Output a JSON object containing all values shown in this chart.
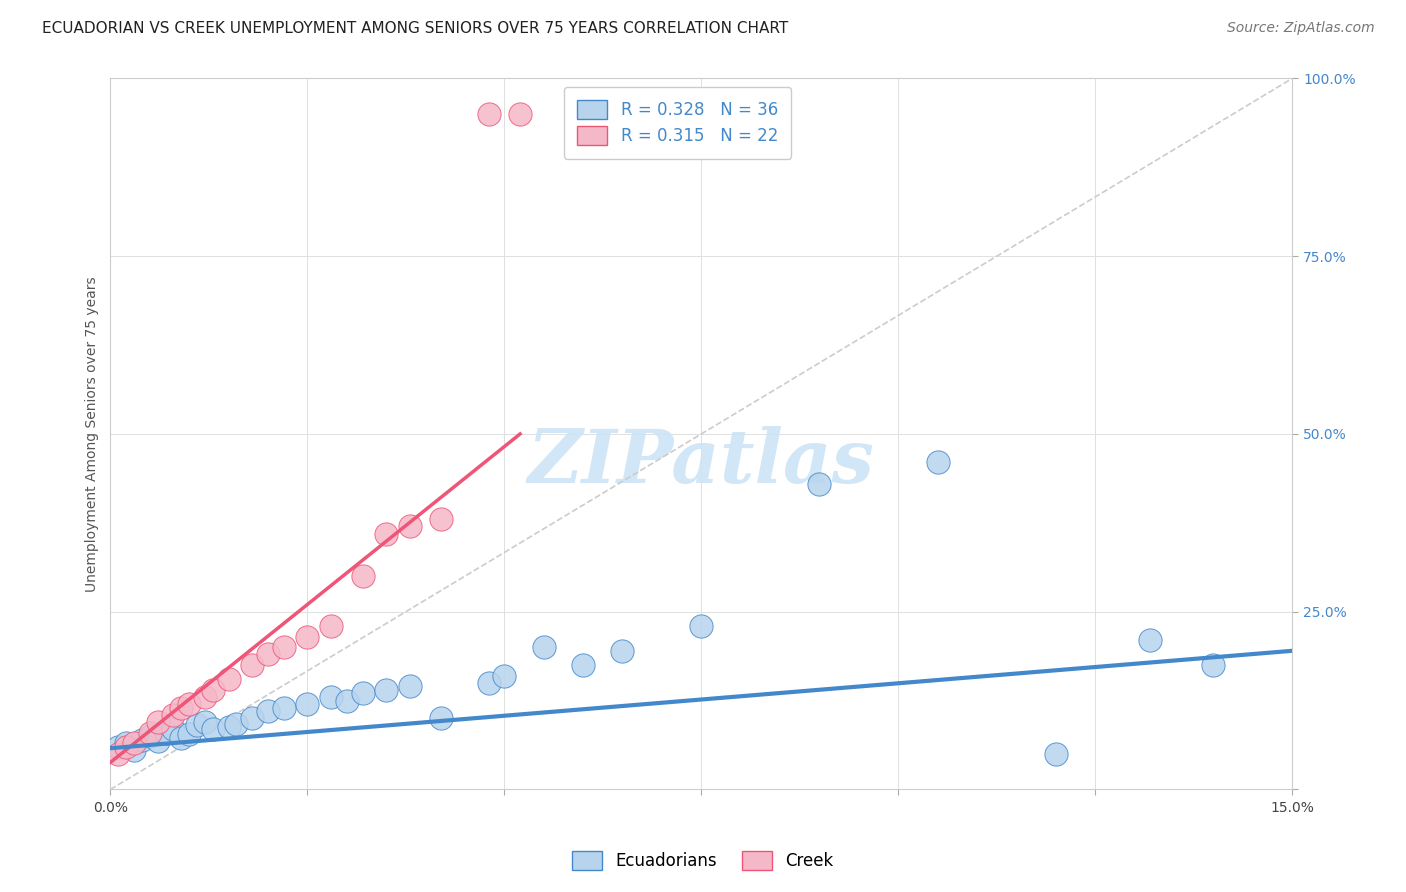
{
  "title": "ECUADORIAN VS CREEK UNEMPLOYMENT AMONG SENIORS OVER 75 YEARS CORRELATION CHART",
  "source": "Source: ZipAtlas.com",
  "ylabel": "Unemployment Among Seniors over 75 years",
  "xlim": [
    0.0,
    0.15
  ],
  "ylim": [
    0.0,
    1.0
  ],
  "ecuadorians_x": [
    0.001,
    0.002,
    0.003,
    0.004,
    0.005,
    0.006,
    0.007,
    0.008,
    0.009,
    0.01,
    0.011,
    0.012,
    0.013,
    0.015,
    0.016,
    0.018,
    0.02,
    0.022,
    0.025,
    0.028,
    0.03,
    0.032,
    0.035,
    0.038,
    0.042,
    0.048,
    0.05,
    0.055,
    0.06,
    0.065,
    0.075,
    0.09,
    0.105,
    0.12,
    0.132,
    0.14
  ],
  "ecuadorians_y": [
    0.06,
    0.065,
    0.055,
    0.07,
    0.075,
    0.068,
    0.08,
    0.085,
    0.072,
    0.078,
    0.09,
    0.095,
    0.085,
    0.088,
    0.092,
    0.1,
    0.11,
    0.115,
    0.12,
    0.13,
    0.125,
    0.135,
    0.14,
    0.145,
    0.1,
    0.15,
    0.16,
    0.2,
    0.175,
    0.195,
    0.23,
    0.43,
    0.46,
    0.05,
    0.21,
    0.175
  ],
  "creek_x": [
    0.001,
    0.002,
    0.003,
    0.005,
    0.006,
    0.008,
    0.009,
    0.01,
    0.012,
    0.013,
    0.015,
    0.018,
    0.02,
    0.022,
    0.025,
    0.028,
    0.032,
    0.035,
    0.038,
    0.042,
    0.048,
    0.052
  ],
  "creek_y": [
    0.05,
    0.06,
    0.065,
    0.08,
    0.095,
    0.105,
    0.115,
    0.12,
    0.13,
    0.14,
    0.155,
    0.175,
    0.19,
    0.2,
    0.215,
    0.23,
    0.3,
    0.36,
    0.37,
    0.38,
    0.95,
    0.95
  ],
  "creek_line_x0": 0.0,
  "creek_line_y0": 0.038,
  "creek_line_x1": 0.052,
  "creek_line_y1": 0.5,
  "ecu_line_x0": 0.0,
  "ecu_line_y0": 0.058,
  "ecu_line_x1": 0.15,
  "ecu_line_y1": 0.195,
  "R_ecuadorians": 0.328,
  "N_ecuadorians": 36,
  "R_creek": 0.315,
  "N_creek": 22,
  "color_ecuadorians": "#b8d4ed",
  "color_creek": "#f5b8c8",
  "line_color_ecuadorians": "#4488cc",
  "line_color_creek": "#ee5577",
  "dashed_line_color": "#cccccc",
  "watermark_text": "ZIPatlas",
  "background_color": "#ffffff",
  "grid_color": "#e0e0e0",
  "title_fontsize": 11,
  "axis_label_fontsize": 10,
  "tick_fontsize": 10,
  "legend_fontsize": 12,
  "source_fontsize": 10,
  "ytick_color": "#4488cc",
  "legend_r_color": "#4488cc"
}
